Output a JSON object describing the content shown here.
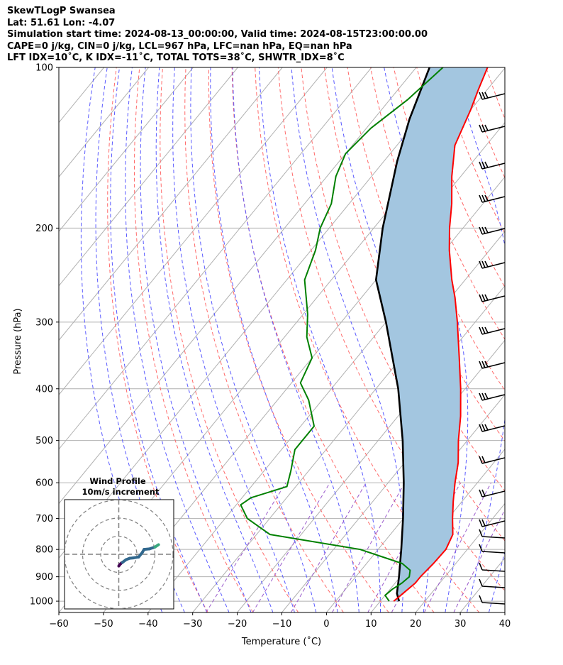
{
  "header": {
    "line1": "SkewTLogP Swansea",
    "line2": "Lat: 51.61   Lon: -4.07",
    "line3": "Simulation start time: 2024-08-13_00:00:00, Valid time: 2024-08-15T23:00:00.00",
    "line4": "CAPE=0 j/kg, CIN=0 j/kg, LCL=967 hPa, LFC=nan hPa, EQ=nan hPa",
    "line5": "LFT IDX=10˚C, K IDX=-11˚C, TOTAL TOTS=38˚C, SHWTR_IDX=8˚C"
  },
  "colors": {
    "temperature": "#ff0000",
    "dewpoint": "#008000",
    "parcel": "#000000",
    "cape_fill": "#a3c6e0",
    "dry_adiabat": "#ff6a6a",
    "moist_adiabat": "#5a5aff",
    "mixing_ratio": "#9a5acc",
    "isotherm": "#b0b0b0"
  },
  "chart_data": {
    "type": "line",
    "xlabel": "Temperature (˚C)",
    "ylabel": "Pressure (hPa)",
    "x_ticks": [
      "−60",
      "−50",
      "−40",
      "−30",
      "−20",
      "−10",
      "0",
      "10",
      "20",
      "30",
      "40"
    ],
    "y_ticks": [
      "100",
      "200",
      "300",
      "400",
      "500",
      "600",
      "700",
      "800",
      "900",
      "1000"
    ],
    "xlim": [
      -60,
      40
    ],
    "ylim": [
      1050,
      100
    ],
    "y_scale": "log",
    "grid": true,
    "series": [
      {
        "kind": "temperature",
        "points": [
          [
            1000,
            13
          ],
          [
            975,
            13.5
          ],
          [
            950,
            14
          ],
          [
            925,
            14.5
          ],
          [
            900,
            14.5
          ],
          [
            850,
            15
          ],
          [
            800,
            15.2
          ],
          [
            750,
            14
          ],
          [
            700,
            11
          ],
          [
            650,
            8
          ],
          [
            600,
            5
          ],
          [
            550,
            2
          ],
          [
            500,
            -2
          ],
          [
            450,
            -6
          ],
          [
            400,
            -11
          ],
          [
            350,
            -17
          ],
          [
            300,
            -24
          ],
          [
            270,
            -29
          ],
          [
            250,
            -33
          ],
          [
            220,
            -39
          ],
          [
            200,
            -43
          ],
          [
            180,
            -47
          ],
          [
            160,
            -52
          ],
          [
            140,
            -57
          ],
          [
            120,
            -60
          ],
          [
            110,
            -62
          ],
          [
            100,
            -64
          ]
        ]
      },
      {
        "kind": "dewpoint",
        "points": [
          [
            1000,
            12
          ],
          [
            975,
            10
          ],
          [
            950,
            10.5
          ],
          [
            925,
            11.5
          ],
          [
            900,
            12
          ],
          [
            875,
            11
          ],
          [
            850,
            8
          ],
          [
            800,
            -4
          ],
          [
            750,
            -27
          ],
          [
            700,
            -35
          ],
          [
            660,
            -39
          ],
          [
            640,
            -38
          ],
          [
            610,
            -32
          ],
          [
            570,
            -34
          ],
          [
            520,
            -37
          ],
          [
            470,
            -37
          ],
          [
            420,
            -43
          ],
          [
            390,
            -48
          ],
          [
            350,
            -50
          ],
          [
            320,
            -55
          ],
          [
            290,
            -59
          ],
          [
            250,
            -66
          ],
          [
            220,
            -69
          ],
          [
            200,
            -72
          ],
          [
            180,
            -74
          ],
          [
            160,
            -78
          ],
          [
            145,
            -80
          ],
          [
            130,
            -79
          ],
          [
            115,
            -76
          ],
          [
            100,
            -74
          ]
        ]
      },
      {
        "kind": "parcel",
        "points": [
          [
            1000,
            14.2
          ],
          [
            967,
            12.3
          ],
          [
            900,
            9.7
          ],
          [
            800,
            5.2
          ],
          [
            700,
            -0.1
          ],
          [
            600,
            -6.5
          ],
          [
            500,
            -14.5
          ],
          [
            400,
            -25
          ],
          [
            300,
            -40
          ],
          [
            250,
            -50
          ],
          [
            200,
            -58
          ],
          [
            150,
            -67
          ],
          [
            125,
            -72
          ],
          [
            100,
            -77
          ]
        ]
      }
    ],
    "wind_barbs_label": "",
    "hodograph": {
      "title": "Wind Profile",
      "subtitle": "10m/s increment",
      "ring_speeds_ms": [
        10,
        20,
        30
      ],
      "points_ms": [
        [
          0,
          -6.5
        ],
        [
          0.5,
          -5.8
        ],
        [
          1.5,
          -4.8
        ],
        [
          2,
          -4.5
        ],
        [
          4,
          -3
        ],
        [
          6,
          -2.2
        ],
        [
          8,
          -2
        ],
        [
          11,
          -1.5
        ],
        [
          13,
          1
        ],
        [
          14,
          2.7
        ],
        [
          17,
          3
        ],
        [
          20,
          4
        ],
        [
          22,
          5.3
        ]
      ],
      "color_start": "#440154",
      "color_mid": "#31688e",
      "color_end": "#fde725"
    }
  }
}
